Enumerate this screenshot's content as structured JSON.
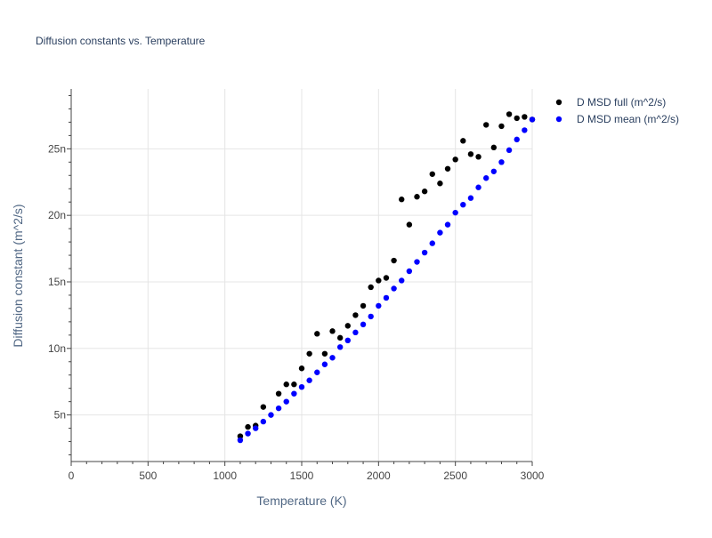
{
  "chart_data": {
    "type": "scatter",
    "title": "Diffusion constants vs. Temperature",
    "xlabel": "Temperature (K)",
    "ylabel": "Diffusion constant (m^2/s)",
    "xlim": [
      0,
      3000
    ],
    "ylim": [
      1.5e-09,
      2.95e-08
    ],
    "x_ticks": [
      0,
      500,
      1000,
      1500,
      2000,
      2500,
      3000
    ],
    "x_tick_labels": [
      "0",
      "500",
      "1000",
      "1500",
      "2000",
      "2500",
      "3000"
    ],
    "y_ticks": [
      5e-09,
      1e-08,
      1.5e-08,
      2e-08,
      2.5e-08
    ],
    "y_tick_labels": [
      "5n",
      "10n",
      "15n",
      "20n",
      "25n"
    ],
    "grid": true,
    "legend_position": "top-right",
    "series": [
      {
        "name": "D MSD full (m^2/s)",
        "color": "#000000",
        "x": [
          1100,
          1150,
          1200,
          1250,
          1350,
          1400,
          1450,
          1500,
          1550,
          1600,
          1650,
          1700,
          1750,
          1800,
          1850,
          1900,
          1950,
          2000,
          2050,
          2100,
          2150,
          2200,
          2250,
          2300,
          2350,
          2400,
          2450,
          2500,
          2550,
          2600,
          2650,
          2700,
          2750,
          2800,
          2850,
          2900,
          2950,
          3000
        ],
        "y": [
          3.4e-09,
          4.1e-09,
          4.2e-09,
          5.6e-09,
          6.6e-09,
          7.3e-09,
          7.3e-09,
          8.5e-09,
          9.6e-09,
          1.11e-08,
          9.6e-09,
          1.13e-08,
          1.08e-08,
          1.17e-08,
          1.25e-08,
          1.32e-08,
          1.46e-08,
          1.51e-08,
          1.53e-08,
          1.66e-08,
          2.12e-08,
          1.93e-08,
          2.14e-08,
          2.18e-08,
          2.31e-08,
          2.24e-08,
          2.35e-08,
          2.42e-08,
          2.56e-08,
          2.46e-08,
          2.44e-08,
          2.68e-08,
          2.51e-08,
          2.67e-08,
          2.76e-08,
          2.73e-08,
          2.74e-08,
          2.72e-08
        ]
      },
      {
        "name": "D MSD mean (m^2/s)",
        "color": "#0000ff",
        "x": [
          1100,
          1150,
          1200,
          1250,
          1300,
          1350,
          1400,
          1450,
          1500,
          1550,
          1600,
          1650,
          1700,
          1750,
          1800,
          1850,
          1900,
          1950,
          2000,
          2050,
          2100,
          2150,
          2200,
          2250,
          2300,
          2350,
          2400,
          2450,
          2500,
          2550,
          2600,
          2650,
          2700,
          2750,
          2800,
          2850,
          2900,
          2950,
          3000
        ],
        "y": [
          3.1e-09,
          3.6e-09,
          4e-09,
          4.5e-09,
          5e-09,
          5.5e-09,
          6e-09,
          6.6e-09,
          7.1e-09,
          7.6e-09,
          8.2e-09,
          8.8e-09,
          9.3e-09,
          1.01e-08,
          1.06e-08,
          1.12e-08,
          1.18e-08,
          1.24e-08,
          1.32e-08,
          1.38e-08,
          1.45e-08,
          1.51e-08,
          1.58e-08,
          1.65e-08,
          1.72e-08,
          1.79e-08,
          1.87e-08,
          1.93e-08,
          2.02e-08,
          2.08e-08,
          2.13e-08,
          2.21e-08,
          2.28e-08,
          2.33e-08,
          2.4e-08,
          2.49e-08,
          2.57e-08,
          2.64e-08,
          2.72e-08
        ]
      }
    ]
  }
}
